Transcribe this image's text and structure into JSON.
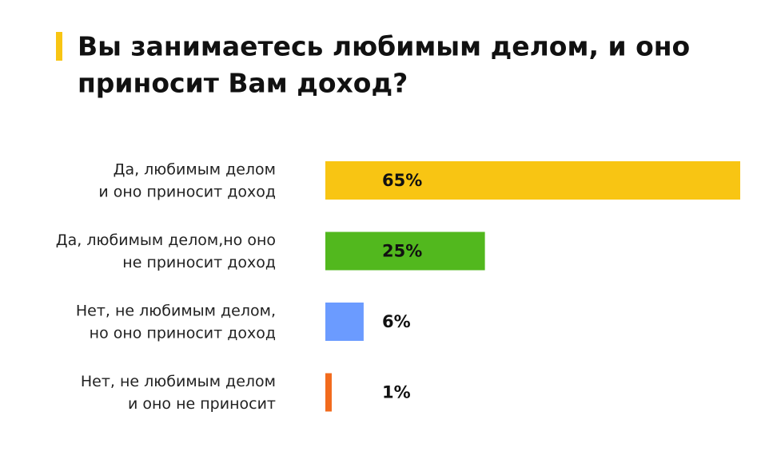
{
  "chart_data": {
    "type": "hbar",
    "title": [
      "Вы занимаетесь любимым делом, и оно",
      "приносит Вам доход?"
    ],
    "categories": [
      [
        "Да, любимым делом",
        "и оно приносит доход"
      ],
      [
        "Да, любимым делом,но оно",
        "не приносит доход"
      ],
      [
        "Нет, не любимым делом,",
        "но оно приносит доход"
      ],
      [
        "Нет, не любимым делом",
        "и оно не приносит"
      ]
    ],
    "values": [
      65,
      25,
      6,
      1
    ],
    "value_labels": [
      "65%",
      "25%",
      "6%",
      "1%"
    ],
    "colors": [
      "#f8c513",
      "#52b81e",
      "#6b9bff",
      "#f26b1d"
    ]
  }
}
